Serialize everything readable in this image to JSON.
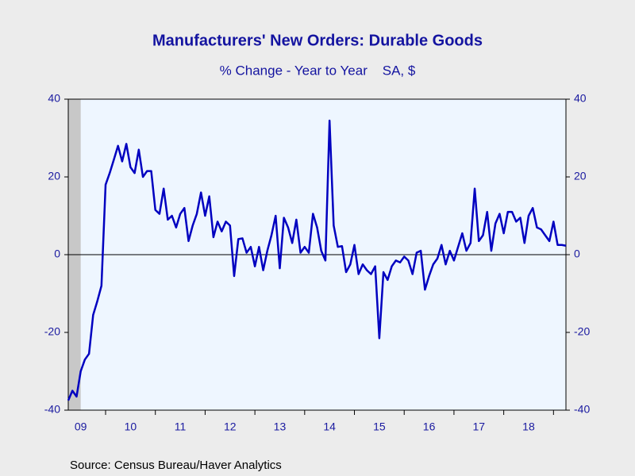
{
  "chart_data": {
    "type": "line",
    "title": "Manufacturers' New Orders: Durable Goods",
    "subtitle": "% Change - Year to Year    SA, $",
    "source": "Source:  Census Bureau/Haver Analytics",
    "x": [
      2009.25,
      2009.333,
      2009.417,
      2009.5,
      2009.583,
      2009.667,
      2009.75,
      2009.833,
      2009.917,
      2010,
      2010.083,
      2010.167,
      2010.25,
      2010.333,
      2010.417,
      2010.5,
      2010.583,
      2010.667,
      2010.75,
      2010.833,
      2010.917,
      2011,
      2011.083,
      2011.167,
      2011.25,
      2011.333,
      2011.417,
      2011.5,
      2011.583,
      2011.667,
      2011.75,
      2011.833,
      2011.917,
      2012,
      2012.083,
      2012.167,
      2012.25,
      2012.333,
      2012.417,
      2012.5,
      2012.583,
      2012.667,
      2012.75,
      2012.833,
      2012.917,
      2013,
      2013.083,
      2013.167,
      2013.25,
      2013.333,
      2013.417,
      2013.5,
      2013.583,
      2013.667,
      2013.75,
      2013.833,
      2013.917,
      2014,
      2014.083,
      2014.167,
      2014.25,
      2014.333,
      2014.417,
      2014.5,
      2014.583,
      2014.667,
      2014.75,
      2014.833,
      2014.917,
      2015,
      2015.083,
      2015.167,
      2015.25,
      2015.333,
      2015.417,
      2015.5,
      2015.583,
      2015.667,
      2015.75,
      2015.833,
      2015.917,
      2016,
      2016.083,
      2016.167,
      2016.25,
      2016.333,
      2016.417,
      2016.5,
      2016.583,
      2016.667,
      2016.75,
      2016.833,
      2016.917,
      2017,
      2017.083,
      2017.167,
      2017.25,
      2017.333,
      2017.417,
      2017.5,
      2017.583,
      2017.667,
      2017.75,
      2017.833,
      2017.917,
      2018,
      2018.083,
      2018.167,
      2018.25,
      2018.333,
      2018.417,
      2018.5,
      2018.583,
      2018.667,
      2018.75,
      2018.833,
      2018.917,
      2019,
      2019.083,
      2019.167,
      2019.25
    ],
    "series": [
      {
        "color": "#0000c0",
        "values": [
          -37.5,
          -35,
          -36.5,
          -30,
          -27,
          -25.5,
          -15.5,
          -12,
          -8,
          18,
          21,
          24.5,
          28,
          24,
          28.5,
          22.5,
          21,
          27,
          20,
          21.5,
          21.5,
          11.5,
          10.5,
          17,
          9,
          10,
          7,
          10.5,
          12,
          3.5,
          7.5,
          10.5,
          16,
          10,
          15,
          4.5,
          8.5,
          6,
          8.5,
          7.5,
          -5.5,
          4,
          4.2,
          0.5,
          2,
          -3,
          2,
          -4,
          1,
          5,
          10,
          -3.5,
          9.5,
          7,
          3,
          9,
          0.5,
          2,
          0.5,
          10.5,
          7,
          1,
          -1.5,
          34.5,
          7.5,
          2,
          2.2,
          -4.5,
          -2.5,
          2.5,
          -5,
          -2.5,
          -4,
          -5,
          -3,
          -21.5,
          -4.5,
          -6.5,
          -3,
          -1.5,
          -2,
          -0.5,
          -1.5,
          -5,
          0.5,
          1,
          -9,
          -5.5,
          -2.5,
          -1,
          2.5,
          -2.5,
          1,
          -1.5,
          2,
          5.5,
          1,
          3,
          17,
          3.5,
          5,
          11,
          1,
          8,
          10.5,
          5.5,
          11,
          11,
          8.5,
          9.5,
          3,
          10,
          12,
          7,
          6.5,
          5,
          3.5,
          8.5,
          2.5,
          2.5,
          2.3
        ]
      }
    ],
    "xlim": [
      2009.25,
      2019.25
    ],
    "xticks": [
      {
        "value": 2009.5,
        "label": "09"
      },
      {
        "value": 2010.5,
        "label": "10"
      },
      {
        "value": 2011.5,
        "label": "11"
      },
      {
        "value": 2012.5,
        "label": "12"
      },
      {
        "value": 2013.5,
        "label": "13"
      },
      {
        "value": 2014.5,
        "label": "14"
      },
      {
        "value": 2015.5,
        "label": "15"
      },
      {
        "value": 2016.5,
        "label": "16"
      },
      {
        "value": 2017.5,
        "label": "17"
      },
      {
        "value": 2018.5,
        "label": "18"
      }
    ],
    "ylim": [
      -40,
      40
    ],
    "yticks": [
      -40,
      -20,
      0,
      20,
      40
    ],
    "recession": [
      2009.25,
      2009.5
    ]
  }
}
